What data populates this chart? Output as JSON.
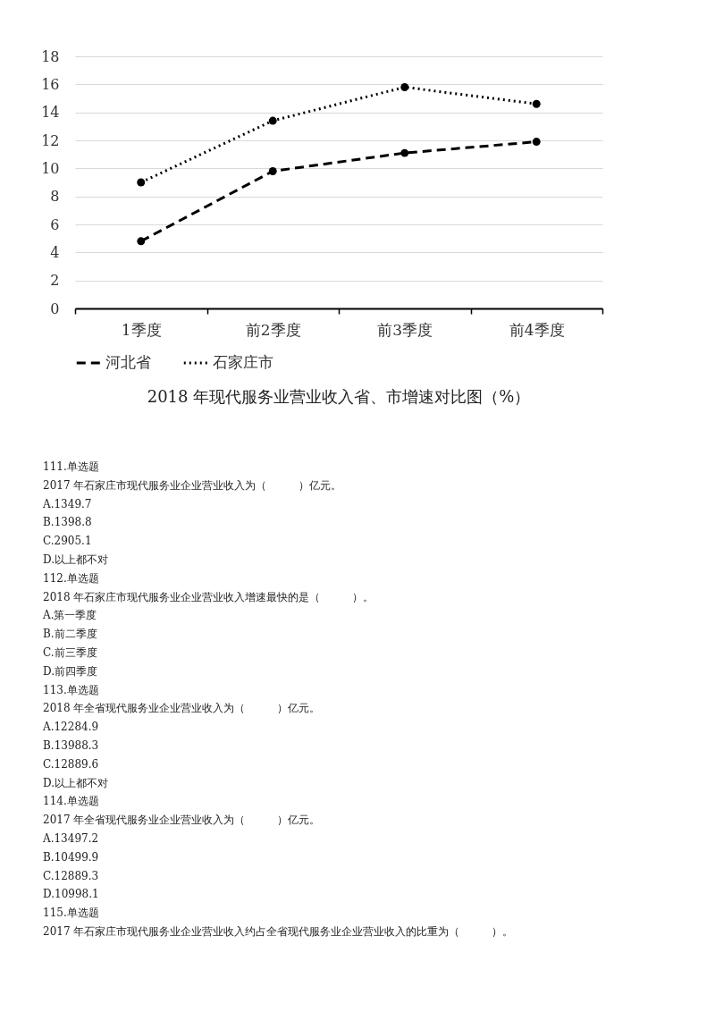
{
  "chart_data": {
    "type": "line",
    "title": "2018 年现代服务业营业收入省、市增速对比图（%）",
    "categories": [
      "1季度",
      "前2季度",
      "前3季度",
      "前4季度"
    ],
    "series": [
      {
        "name": "河北省",
        "color": "#000000",
        "line_style": "dashed",
        "values": [
          4.8,
          9.8,
          11.1,
          11.9
        ]
      },
      {
        "name": "石家庄市",
        "color": "#000000",
        "line_style": "dotted",
        "values": [
          9.0,
          13.4,
          15.8,
          14.6
        ]
      }
    ],
    "ylim": [
      0,
      18
    ],
    "yticks": [
      0,
      2,
      4,
      6,
      8,
      10,
      12,
      14,
      16,
      18
    ],
    "grid": "y",
    "legend": "bottom",
    "marker": "circle",
    "annotations": [
      "111.单选题",
      "2017 年石家庄市现代服务业企业营业收入为（　　　）亿元。",
      "A.1349.7",
      "B.1398.8",
      "C.2905.1",
      "D.以上都不对",
      "112.单选题",
      "2018 年石家庄市现代服务业企业营业收入增速最快的是（　　　）。",
      "A.第一季度",
      "B.前二季度",
      "C.前三季度",
      "D.前四季度",
      "113.单选题",
      "2018 年全省现代服务业企业营业收入为（　　　）亿元。",
      "A.12284.9",
      "B.13988.3",
      "C.12889.6",
      "D.以上都不对",
      "114.单选题",
      "2017 年全省现代服务业企业营业收入为（　　　）亿元。",
      "A.13497.2",
      "B.10499.9",
      "C.12889.3",
      "D.10998.1",
      "115.单选题",
      "2017 年石家庄市现代服务业企业营业收入约占全省现代服务业企业营业收入的比重为（　　　）。"
    ]
  }
}
